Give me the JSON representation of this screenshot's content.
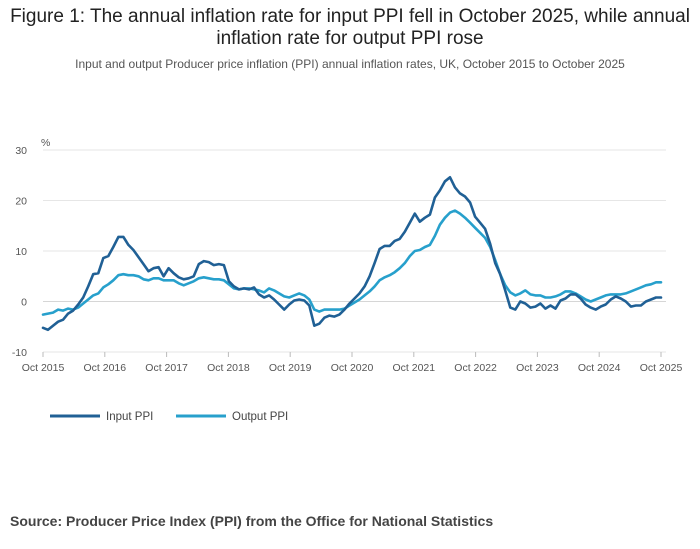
{
  "title": "Figure 1: The annual inflation rate for input PPI fell in October 2025, while annual inflation rate for output PPI rose",
  "subtitle": "Input and output Producer price inflation (PPI) annual inflation rates, UK, October 2015 to October 2025",
  "source": "Source: Producer Price Index (PPI) from the Office for National Statistics",
  "chart_data": {
    "type": "line",
    "title": "Figure 1: The annual inflation rate for input PPI fell in October 2025, while annual inflation rate for output PPI rose",
    "ylabel": "%",
    "xlabel": "",
    "ylim": [
      -10,
      30
    ],
    "yticks": [
      -10,
      0,
      10,
      20,
      30
    ],
    "xticks": [
      "Oct 2015",
      "Oct 2016",
      "Oct 2017",
      "Oct 2018",
      "Oct 2019",
      "Oct 2020",
      "Oct 2021",
      "Oct 2022",
      "Oct 2023",
      "Oct 2024",
      "Oct 2025"
    ],
    "legend_position": "bottom-left",
    "grid": true,
    "series": [
      {
        "name": "Input PPI",
        "color": "#206095",
        "values": [
          -5.2,
          -5.6,
          -4.8,
          -4.0,
          -3.6,
          -2.4,
          -1.8,
          -0.6,
          0.8,
          3.0,
          5.4,
          5.6,
          8.6,
          9.0,
          10.8,
          12.8,
          12.8,
          11.2,
          10.2,
          8.8,
          7.4,
          6.0,
          6.6,
          6.8,
          5.0,
          6.6,
          5.6,
          4.8,
          4.4,
          4.6,
          5.0,
          7.4,
          8.0,
          7.8,
          7.2,
          7.4,
          7.2,
          4.0,
          3.0,
          2.4,
          2.6,
          2.4,
          2.8,
          1.4,
          0.8,
          1.2,
          0.4,
          -0.6,
          -1.6,
          -0.6,
          0.2,
          0.4,
          0.2,
          -0.8,
          -4.8,
          -4.4,
          -3.2,
          -2.8,
          -3.0,
          -2.6,
          -1.6,
          -0.4,
          0.6,
          1.6,
          3.0,
          5.0,
          7.6,
          10.4,
          11.0,
          11.0,
          12.0,
          12.4,
          13.8,
          15.6,
          17.4,
          15.8,
          16.6,
          17.2,
          20.6,
          22.0,
          23.8,
          24.6,
          22.6,
          21.4,
          20.8,
          19.6,
          16.8,
          15.6,
          14.4,
          11.4,
          7.6,
          5.4,
          2.2,
          -1.2,
          -1.6,
          0.0,
          -0.4,
          -1.2,
          -1.0,
          -0.4,
          -1.4,
          -0.8,
          -1.4,
          0.2,
          0.6,
          1.4,
          1.4,
          0.6,
          -0.6,
          -1.2,
          -1.6,
          -1.0,
          -0.6,
          0.4,
          1.0,
          0.6,
          0.0,
          -1.0,
          -0.8,
          -0.8,
          0.0,
          0.4,
          0.8,
          0.8
        ]
      },
      {
        "name": "Output PPI",
        "color": "#27a0cc",
        "values": [
          -2.6,
          -2.4,
          -2.2,
          -1.6,
          -1.8,
          -1.4,
          -1.6,
          -1.2,
          -0.4,
          0.4,
          1.2,
          1.6,
          2.8,
          3.4,
          4.2,
          5.2,
          5.4,
          5.2,
          5.2,
          5.0,
          4.4,
          4.2,
          4.6,
          4.6,
          4.2,
          4.2,
          4.2,
          3.6,
          3.2,
          3.6,
          4.0,
          4.6,
          4.8,
          4.6,
          4.4,
          4.4,
          4.2,
          3.4,
          2.6,
          2.4,
          2.6,
          2.6,
          2.4,
          2.2,
          1.8,
          2.6,
          2.2,
          1.6,
          1.0,
          0.8,
          1.2,
          1.6,
          1.2,
          0.4,
          -1.6,
          -2.0,
          -1.6,
          -1.6,
          -1.6,
          -1.6,
          -1.4,
          -0.8,
          -0.2,
          0.4,
          1.2,
          2.0,
          3.0,
          4.2,
          4.8,
          5.2,
          5.8,
          6.6,
          7.6,
          9.0,
          10.0,
          10.2,
          10.8,
          11.2,
          13.0,
          15.2,
          16.6,
          17.6,
          18.0,
          17.4,
          16.6,
          15.6,
          14.6,
          13.6,
          12.6,
          10.8,
          8.2,
          5.4,
          3.2,
          1.8,
          1.2,
          1.6,
          2.2,
          1.4,
          1.2,
          1.2,
          0.8,
          0.8,
          1.0,
          1.4,
          2.0,
          2.0,
          1.6,
          1.0,
          0.4,
          0.0,
          0.4,
          0.8,
          1.2,
          1.4,
          1.4,
          1.4,
          1.6,
          2.0,
          2.4,
          2.8,
          3.2,
          3.4,
          3.8,
          3.8
        ]
      }
    ]
  }
}
